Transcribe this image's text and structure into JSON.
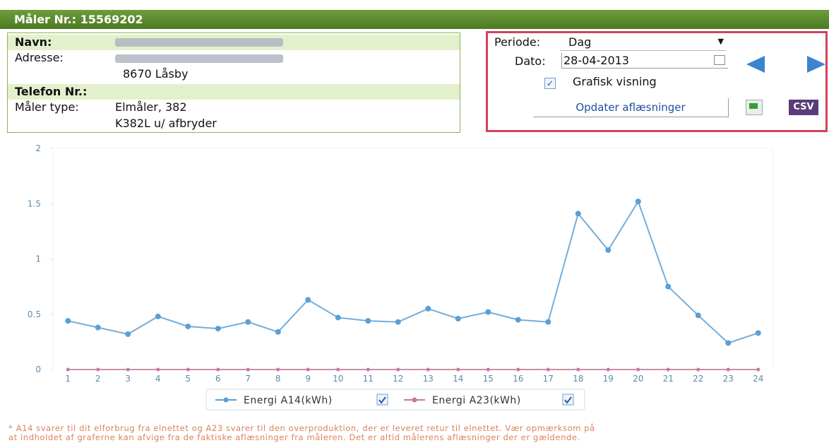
{
  "header": {
    "title": "Måler Nr.: 15569202"
  },
  "info": {
    "navn_label": "Navn:",
    "adresse_label": "Adresse:",
    "adresse_line2": "8670 Låsby",
    "telefon_label": "Telefon Nr.:",
    "maaler_type_label": "Måler type:",
    "maaler_type_line1": "Elmåler, 382",
    "maaler_type_line2": "K382L u/ afbryder"
  },
  "controls": {
    "periode_label": "Periode:",
    "periode_value": "Dag",
    "dato_label": "Dato:",
    "dato_value": "28-04-2013",
    "grafisk_label": "Grafisk visning",
    "update_button": "Opdater aflæsninger",
    "csv_label": "CSV"
  },
  "chart_data": {
    "type": "line",
    "x": [
      1,
      2,
      3,
      4,
      5,
      6,
      7,
      8,
      9,
      10,
      11,
      12,
      13,
      14,
      15,
      16,
      17,
      18,
      19,
      20,
      21,
      22,
      23,
      24
    ],
    "xlim": [
      0.5,
      24.5
    ],
    "xticks": [
      1,
      2,
      3,
      4,
      5,
      6,
      7,
      8,
      9,
      10,
      11,
      12,
      13,
      14,
      15,
      16,
      17,
      18,
      19,
      20,
      21,
      22,
      23,
      24
    ],
    "ylim": [
      0,
      2
    ],
    "yticks": [
      0,
      0.5,
      1,
      1.5,
      2
    ],
    "series": [
      {
        "name": "Energi A14(kWh)",
        "color": "#5b9fd4",
        "values": [
          0.44,
          0.38,
          0.32,
          0.48,
          0.39,
          0.37,
          0.43,
          0.34,
          0.63,
          0.47,
          0.44,
          0.43,
          0.55,
          0.46,
          0.52,
          0.45,
          0.43,
          1.41,
          1.08,
          1.52,
          0.75,
          0.49,
          0.24,
          0.33
        ]
      },
      {
        "name": "Energi A23(kWh)",
        "color": "#c27b98",
        "values": [
          0,
          0,
          0,
          0,
          0,
          0,
          0,
          0,
          0,
          0,
          0,
          0,
          0,
          0,
          0,
          0,
          0,
          0,
          0,
          0,
          0,
          0,
          0,
          0
        ]
      }
    ]
  },
  "footnote": [
    "* A14 svarer til dit elforbrug fra elnettet og A23 svarer til den overproduktion, der er leveret retur til elnettet. Vær opmærksom på",
    "at indholdet af graferne kan afvige fra de faktiske aflæsninger fra måleren. Det er altid målerens aflæsninger der er gældende."
  ]
}
